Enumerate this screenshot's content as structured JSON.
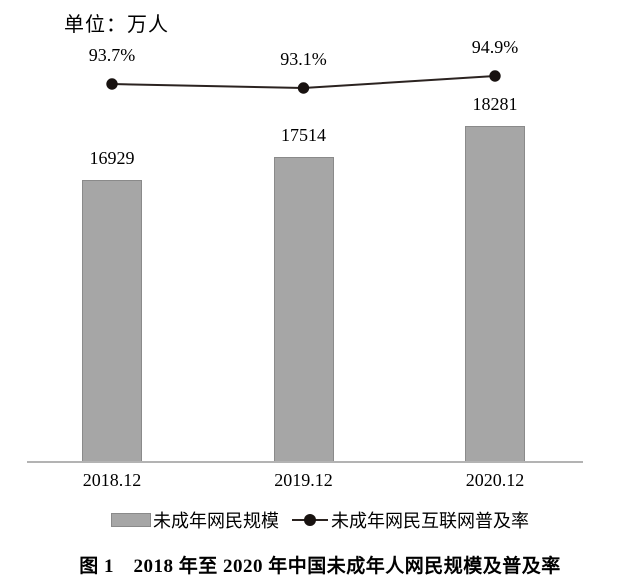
{
  "unit_label": "单位：万人",
  "chart_data": {
    "type": "bar",
    "categories": [
      "2018.12",
      "2019.12",
      "2020.12"
    ],
    "series": [
      {
        "name": "未成年网民规模",
        "type": "bar",
        "values": [
          16929,
          17514,
          18281
        ],
        "unit": "万人"
      },
      {
        "name": "未成年网民互联网普及率",
        "type": "line",
        "values": [
          93.7,
          93.1,
          94.9
        ],
        "unit": "%"
      }
    ],
    "bar_value_labels": [
      "16929",
      "17514",
      "18281"
    ],
    "pct_value_labels": [
      "93.7%",
      "93.1%",
      "94.9%"
    ],
    "title": "图 1　2018 年至 2020 年中国未成年人网民规模及普及率",
    "xlabel": "",
    "ylabel": "万人",
    "grid": false,
    "legend_position": "bottom",
    "colors": {
      "bar_fill": "#a6a6a6",
      "bar_border": "#8a8a8a",
      "line": "#2b2320",
      "dot": "#181210",
      "axis": "#b3b3b3",
      "text": "#000000"
    }
  },
  "legend": {
    "bar_label": "未成年网民规模",
    "line_label": "未成年网民互联网普及率"
  },
  "caption": "图 1　2018 年至 2020 年中国未成年人网民规模及普及率"
}
